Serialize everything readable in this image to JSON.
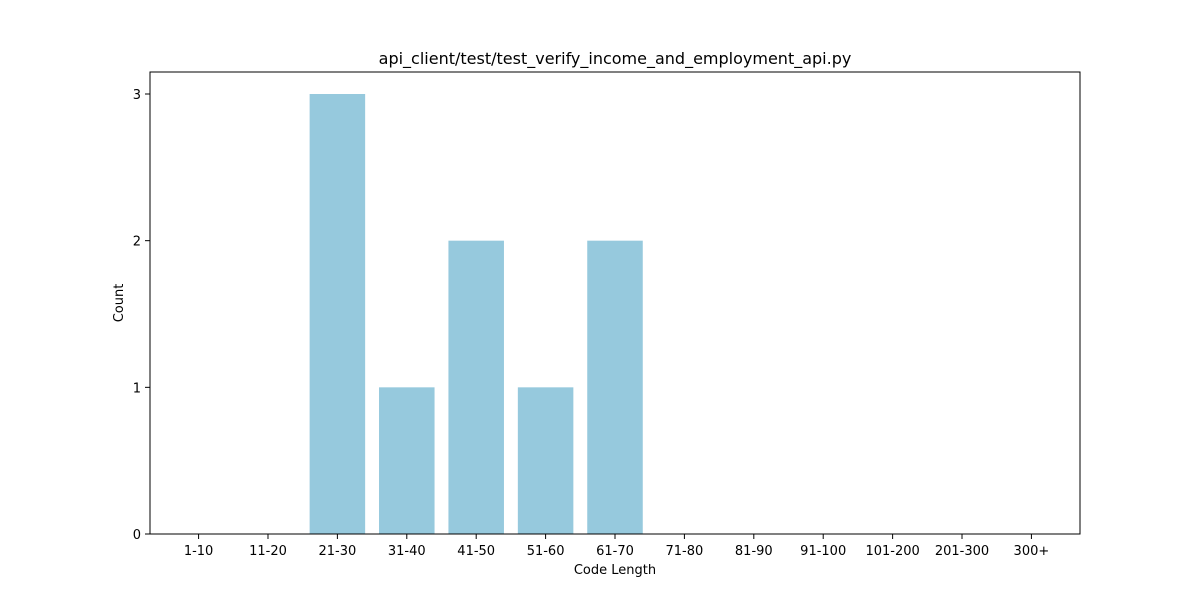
{
  "chart_data": {
    "type": "bar",
    "title": "api_client/test/test_verify_income_and_employment_api.py",
    "xlabel": "Code Length",
    "ylabel": "Count",
    "categories": [
      "1-10",
      "11-20",
      "21-30",
      "31-40",
      "41-50",
      "51-60",
      "61-70",
      "71-80",
      "81-90",
      "91-100",
      "101-200",
      "201-300",
      "300+"
    ],
    "values": [
      0,
      0,
      3,
      1,
      2,
      1,
      2,
      0,
      0,
      0,
      0,
      0,
      0
    ],
    "ylim": [
      0,
      3.15
    ],
    "yticks": [
      0,
      1,
      2,
      3
    ],
    "bar_color": "#96c9dd",
    "grid": false,
    "legend": "none"
  }
}
